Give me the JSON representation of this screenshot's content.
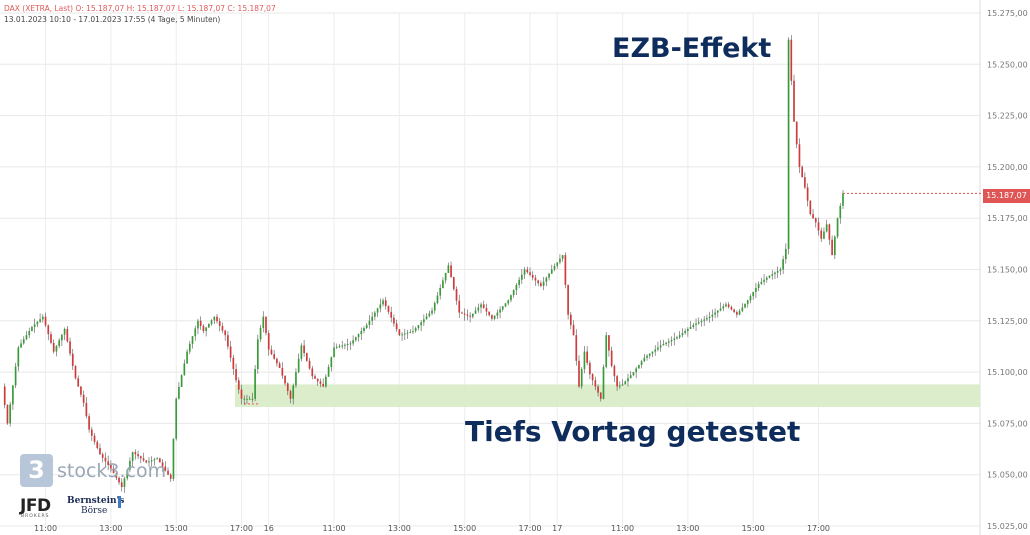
{
  "header": {
    "line1": "DAX (XETRA, Last)   O: 15.187,07   H: 15.187,07   L: 15.187,07   C: 15.187,07",
    "line2": "13.01.2023 10:10 - 17.01.2023 17:55   (4 Tage, 5 Minuten)"
  },
  "annotations": {
    "top": "EZB-Effekt",
    "bottom": "Tiefs Vortag getestet"
  },
  "price_badge": "15.187,07",
  "logos": {
    "stock3_mark": "3",
    "stock3_text": "stock3.com",
    "jfd_text": "JFD",
    "jfd_sub": "BROKERS",
    "bernstein_line1": "Bernstein's",
    "bernstein_line2": "Börse"
  },
  "colors": {
    "up": "#3a9a3a",
    "down": "#cf3a3a",
    "zone": "#d9ecc8",
    "annotation": "#0f2d5c",
    "badge": "#e05656"
  },
  "chart_data": {
    "type": "candlestick",
    "y_range": [
      15025,
      15275
    ],
    "y_ticks": [
      15025,
      15050,
      15075,
      15100,
      15125,
      15150,
      15175,
      15200,
      15225,
      15250,
      15275
    ],
    "y_tick_labels": [
      "15.025,00",
      "15.050,00",
      "15.075,00",
      "15.100,00",
      "15.125,00",
      "15.150,00",
      "15.175,00",
      "15.200,00",
      "15.225,00",
      "15.250,00",
      "15.275,00"
    ],
    "x_ticks": [
      {
        "label": "11:00",
        "t": 16
      },
      {
        "label": "13:00",
        "t": 40
      },
      {
        "label": "15:00",
        "t": 64
      },
      {
        "label": "17:00",
        "t": 88
      },
      {
        "label": "16",
        "t": 98
      },
      {
        "label": "11:00",
        "t": 122
      },
      {
        "label": "13:00",
        "t": 146
      },
      {
        "label": "15:00",
        "t": 170
      },
      {
        "label": "17:00",
        "t": 194
      },
      {
        "label": "17",
        "t": 204
      },
      {
        "label": "11:00",
        "t": 228
      },
      {
        "label": "13:00",
        "t": 252
      },
      {
        "label": "15:00",
        "t": 276
      },
      {
        "label": "17:00",
        "t": 300
      }
    ],
    "support_zone": [
      15083,
      15094
    ],
    "last_price": 15187.07,
    "keypoints": [
      [
        0,
        15093
      ],
      [
        2,
        15075
      ],
      [
        6,
        15112
      ],
      [
        11,
        15122
      ],
      [
        15,
        15127
      ],
      [
        19,
        15110
      ],
      [
        23,
        15121
      ],
      [
        27,
        15097
      ],
      [
        30,
        15085
      ],
      [
        32,
        15072
      ],
      [
        36,
        15060
      ],
      [
        40,
        15053
      ],
      [
        44,
        15044
      ],
      [
        48,
        15061
      ],
      [
        53,
        15056
      ],
      [
        57,
        15058
      ],
      [
        62,
        15048
      ],
      [
        64,
        15087
      ],
      [
        68,
        15110
      ],
      [
        72,
        15125
      ],
      [
        74,
        15120
      ],
      [
        78,
        15127
      ],
      [
        82,
        15118
      ],
      [
        86,
        15096
      ],
      [
        88,
        15087
      ],
      [
        92,
        15087
      ],
      [
        94,
        15116
      ],
      [
        96,
        15127
      ],
      [
        98,
        15111
      ],
      [
        102,
        15102
      ],
      [
        106,
        15087
      ],
      [
        110,
        15113
      ],
      [
        114,
        15098
      ],
      [
        118,
        15093
      ],
      [
        122,
        15112
      ],
      [
        128,
        15114
      ],
      [
        134,
        15123
      ],
      [
        140,
        15135
      ],
      [
        146,
        15118
      ],
      [
        151,
        15120
      ],
      [
        158,
        15130
      ],
      [
        164,
        15152
      ],
      [
        168,
        15129
      ],
      [
        172,
        15127
      ],
      [
        176,
        15133
      ],
      [
        180,
        15126
      ],
      [
        186,
        15135
      ],
      [
        192,
        15150
      ],
      [
        198,
        15142
      ],
      [
        202,
        15150
      ],
      [
        206,
        15157
      ],
      [
        208,
        15128
      ],
      [
        210,
        15118
      ],
      [
        212,
        15093
      ],
      [
        214,
        15110
      ],
      [
        216,
        15099
      ],
      [
        218,
        15093
      ],
      [
        220,
        15087
      ],
      [
        222,
        15118
      ],
      [
        224,
        15103
      ],
      [
        226,
        15093
      ],
      [
        228,
        15094
      ],
      [
        232,
        15100
      ],
      [
        236,
        15107
      ],
      [
        242,
        15113
      ],
      [
        248,
        15117
      ],
      [
        254,
        15123
      ],
      [
        260,
        15127
      ],
      [
        266,
        15133
      ],
      [
        270,
        15128
      ],
      [
        274,
        15135
      ],
      [
        278,
        15143
      ],
      [
        282,
        15147
      ],
      [
        286,
        15150
      ],
      [
        288,
        15160
      ],
      [
        289,
        15262
      ],
      [
        291,
        15222
      ],
      [
        293,
        15200
      ],
      [
        295,
        15190
      ],
      [
        297,
        15177
      ],
      [
        299,
        15173
      ],
      [
        301,
        15165
      ],
      [
        303,
        15172
      ],
      [
        305,
        15157
      ],
      [
        307,
        15175
      ],
      [
        309,
        15187.07
      ]
    ]
  }
}
